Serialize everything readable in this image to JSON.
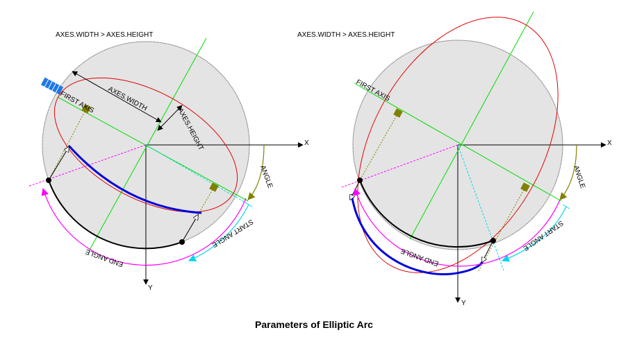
{
  "caption": "Parameters of Elliptic Arc",
  "left": {
    "title": "AXES.WIDTH > AXES.HEIGHT",
    "axis_x": "X",
    "axis_y": "Y",
    "first_axis": "FIRST AXIS",
    "axes_width": "AXES.WIDTH",
    "axes_height": "AXES.HEIGHT",
    "angle": "ANGLE",
    "start_angle": "START ANGLE",
    "end_angle": "END ANGLE"
  },
  "right": {
    "title": "AXES.WIDTH > AXES.HEIGHT",
    "axis_x": "X",
    "axis_y": "Y",
    "first_axis": "FIRST AXIS",
    "angle": "ANGLE",
    "start_angle": "START ANGLE",
    "end_angle": "END ANGLE"
  },
  "colors": {
    "ellipse": "#e00000",
    "arc": "#0000dd",
    "axis_line": "#00dd00",
    "start_line": "#00d8e8",
    "end_line": "#ff00ff",
    "angle_arc": "#808000",
    "circle_fill": "#e4e4e4"
  }
}
